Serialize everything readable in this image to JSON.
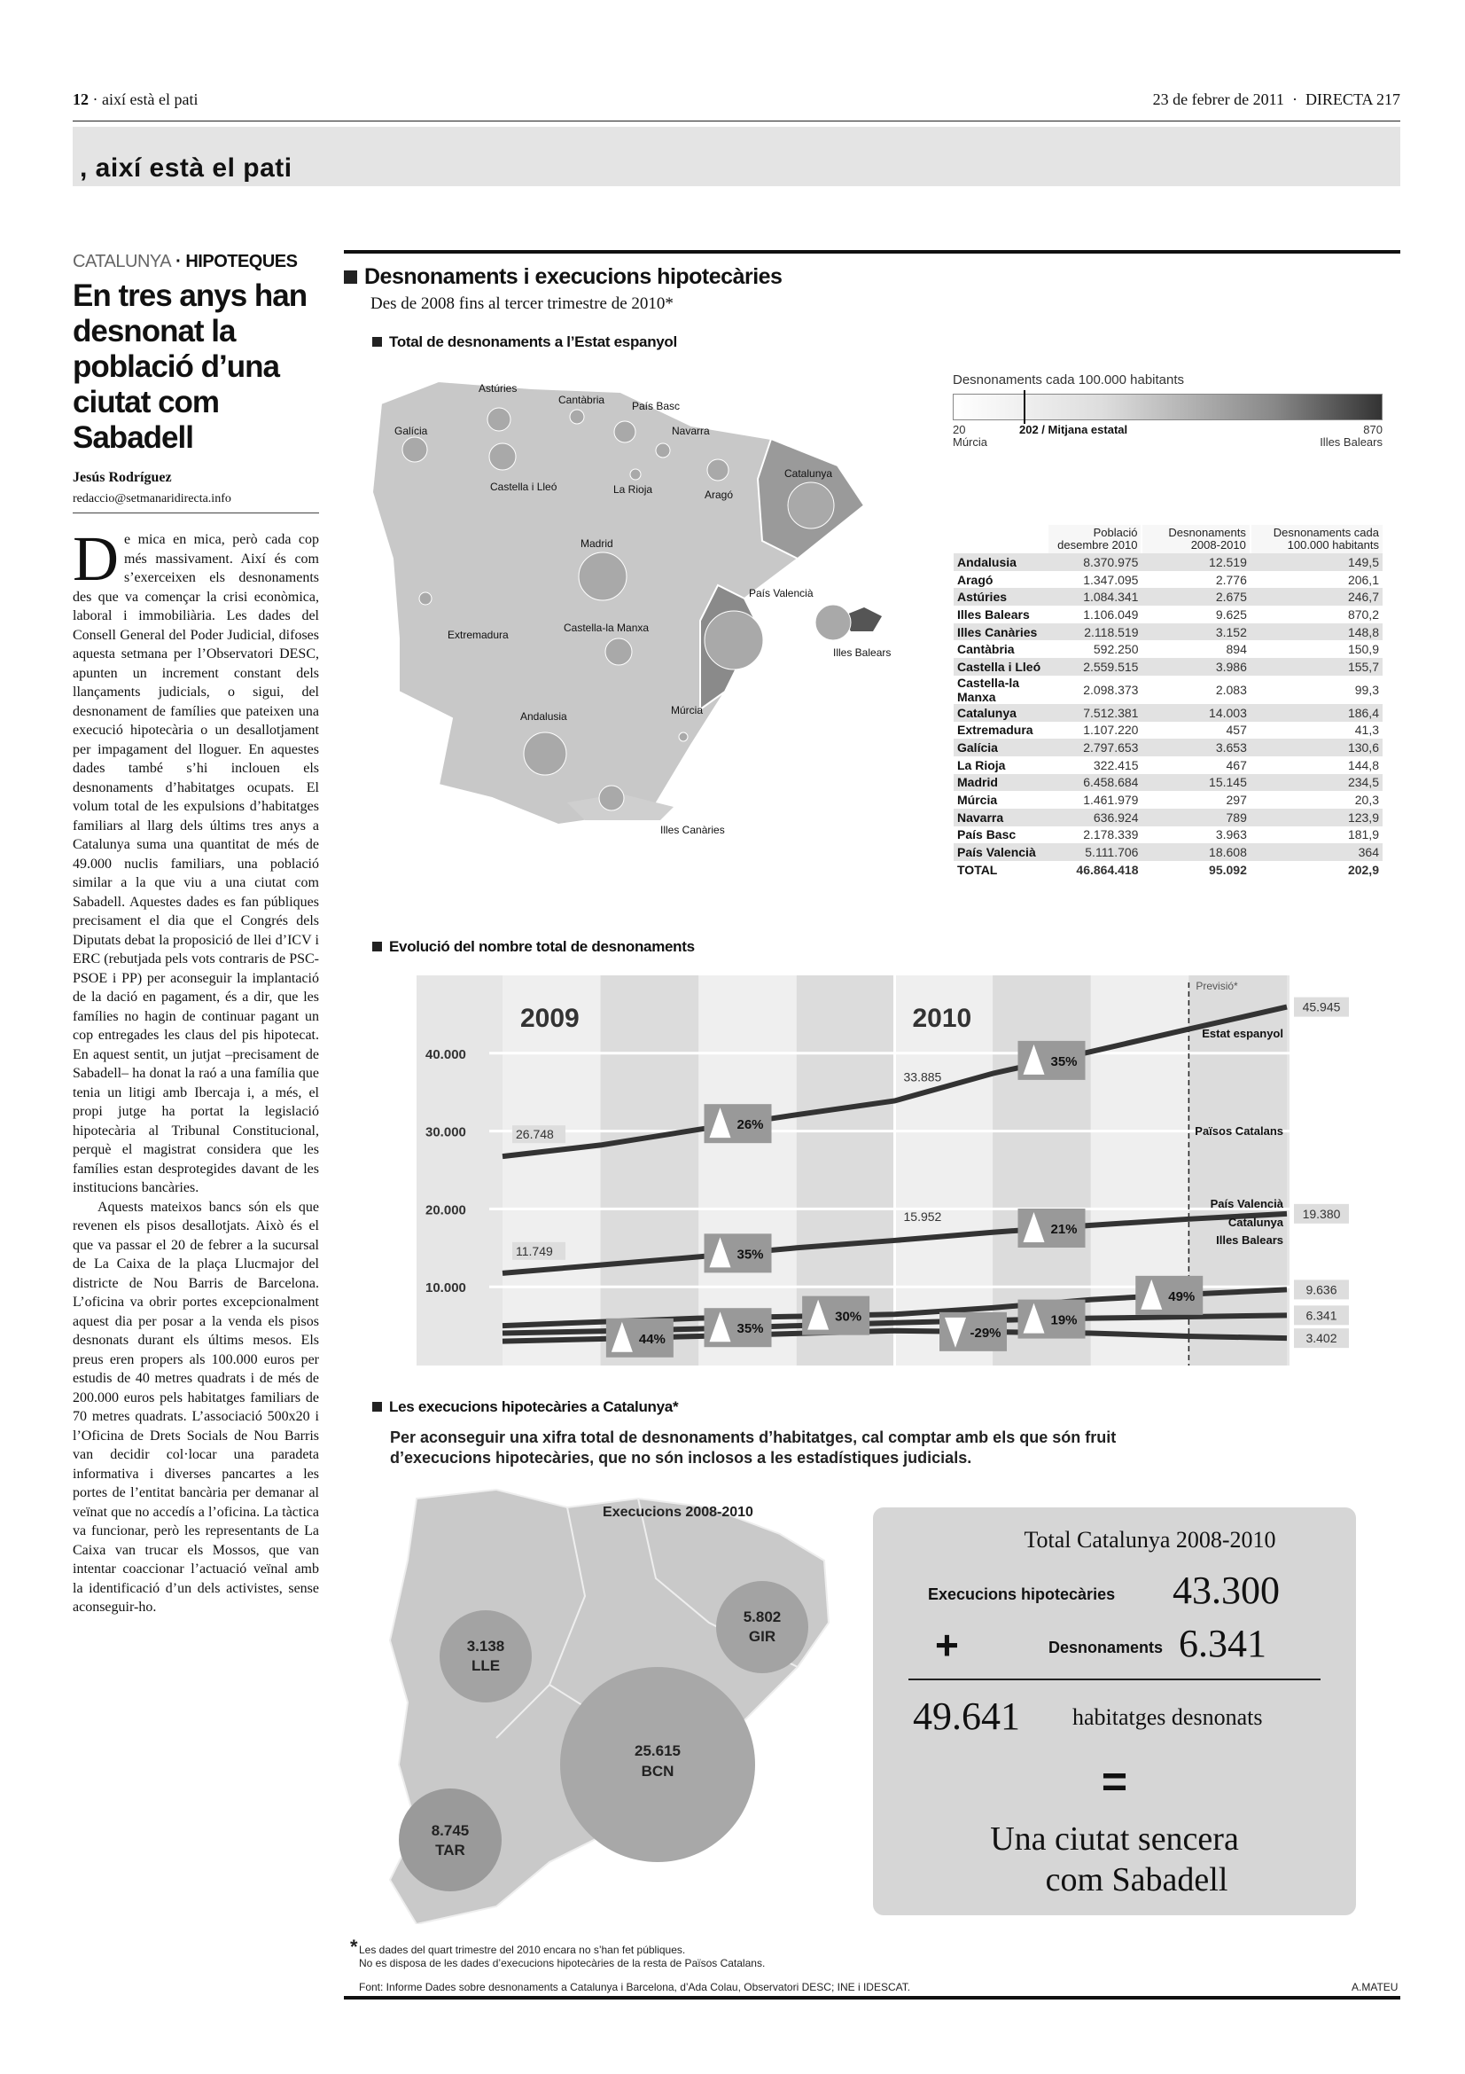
{
  "header": {
    "page": "12",
    "section": "així està el pati",
    "date": "23 de febrer de 2011",
    "separator": "·",
    "publication": "DIRECTA 217"
  },
  "banner": {
    "title": ", així està el pati"
  },
  "article": {
    "kicker_region": "CATALUNYA",
    "kicker_topic": "· HIPOTEQUES",
    "headline": "En tres anys han desnonat la població d’una ciutat com Sabadell",
    "author": "Jesús Rodríguez",
    "email": "redaccio@setmanaridirecta.info",
    "dropcap": "D",
    "paragraphs": [
      "e mica en mica, però cada cop més massivament. Així és com s’exerceixen els desnonaments des que va començar la crisi econòmica, laboral i immobiliària. Les dades del Consell General del Poder Judicial, difoses aquesta setmana per l’Observatori DESC, apunten un increment constant dels llançaments judicials, o sigui, del desnonament de famílies que pateixen una execució hipotecària o un desallotjament per impagament del lloguer. En aquestes dades també s’hi inclouen els desnonaments d’habitatges ocupats. El volum total de les expulsions d’habitatges familiars al llarg dels últims tres anys a Catalunya suma una quantitat de més de 49.000 nuclis familiars, una població similar a la que viu a una ciutat com Sabadell. Aquestes dades es fan públiques precisament el dia que el Congrés dels Diputats debat la proposició de llei d’ICV i ERC (rebutjada pels vots contraris de PSC-PSOE i PP) per aconseguir la implantació de la dació en pagament, és a dir, que les famílies no hagin de continuar pagant un cop entregades les claus del pis hipotecat. En aquest sentit, un jutjat –precisament de Sabadell– ha donat la raó a una família que tenia un litigi amb Ibercaja i, a més, el propi jutge ha portat la legislació hipotecària al Tribunal Constitucional, perquè el magistrat considera que les famílies estan desprotegides davant de les institucions bancàries.",
      "Aquests mateixos bancs són els que revenen els pisos desallotjats. Això és el que va passar el 20 de febrer a la sucursal de La Caixa de la plaça Llucmajor del districte de Nou Barris de Barcelona. L’oficina va obrir portes excepcionalment aquest dia per posar a la venda els pisos desnonats durant els últims mesos. Els preus eren propers als 100.000 euros per estudis de 40 metres quadrats i de més de 200.000 euros pels habitatges familiars de 70 metres quadrats. L’associació 500x20 i l’Oficina de Drets Socials de Nou Barris van decidir col·locar una paradeta informativa i diverses pancartes a les portes de l’entitat bancària per demanar al veïnat que no accedís a l’oficina. La tàctica va funcionar, però les representants de La Caixa van trucar els Mossos, que van intentar coaccionar l’actuació veïnal amb la identificació d’un dels activistes, sense aconseguir-ho."
    ]
  },
  "infographic": {
    "title": "Desnonaments i execucions hipotecàries",
    "subtitle": "Des de 2008 fins al tercer trimestre de 2010*",
    "map_section": "Total de desnonaments a l’Estat espanyol",
    "legend": {
      "title": "Desnonaments cada 100.000 habitants",
      "min_value": "20",
      "min_label": "Múrcia",
      "mid": "202 / Mitjana estatal",
      "max_value": "870",
      "max_label": "Illes Balears"
    },
    "map_labels": [
      "Galícia",
      "Astúries",
      "Cantàbria",
      "País Basc",
      "Navarra",
      "La Rioja",
      "Aragó",
      "Catalunya",
      "Castella i Lleó",
      "Madrid",
      "Extremadura",
      "Castella-la Manxa",
      "País Valencià",
      "Andalusia",
      "Múrcia",
      "Illes Balears",
      "Illes Canàries"
    ],
    "table": {
      "headers": [
        "",
        "Població desembre 2010",
        "Desnonaments 2008-2010",
        "Desnonaments cada 100.000 habitants"
      ],
      "rows": [
        [
          "Andalusia",
          "8.370.975",
          "12.519",
          "149,5"
        ],
        [
          "Aragó",
          "1.347.095",
          "2.776",
          "206,1"
        ],
        [
          "Astúries",
          "1.084.341",
          "2.675",
          "246,7"
        ],
        [
          "Illes Balears",
          "1.106.049",
          "9.625",
          "870,2"
        ],
        [
          "Illes Canàries",
          "2.118.519",
          "3.152",
          "148,8"
        ],
        [
          "Cantàbria",
          "592.250",
          "894",
          "150,9"
        ],
        [
          "Castella i Lleó",
          "2.559.515",
          "3.986",
          "155,7"
        ],
        [
          "Castella-la Manxa",
          "2.098.373",
          "2.083",
          "99,3"
        ],
        [
          "Catalunya",
          "7.512.381",
          "14.003",
          "186,4"
        ],
        [
          "Extremadura",
          "1.107.220",
          "457",
          "41,3"
        ],
        [
          "Galícia",
          "2.797.653",
          "3.653",
          "130,6"
        ],
        [
          "La Rioja",
          "322.415",
          "467",
          "144,8"
        ],
        [
          "Madrid",
          "6.458.684",
          "15.145",
          "234,5"
        ],
        [
          "Múrcia",
          "1.461.979",
          "297",
          "20,3"
        ],
        [
          "Navarra",
          "636.924",
          "789",
          "123,9"
        ],
        [
          "País Basc",
          "2.178.339",
          "3.963",
          "181,9"
        ],
        [
          "País Valencià",
          "5.111.706",
          "18.608",
          "364"
        ],
        [
          "TOTAL",
          "46.864.418",
          "95.092",
          "202,9"
        ]
      ]
    },
    "evolution_section": "Evolució del nombre total de desnonaments",
    "exec_section": "Les execucions hipotecàries a Catalunya*",
    "exec_subtitle": "Per aconseguir una xifra total de desnonaments d’habitatges, cal comptar amb els que són fruit d’execucions hipotecàries, que no són inclosos a les estadístiques judicials.",
    "cat_map": {
      "title": "Execucions 2008-2010",
      "circles": [
        {
          "value": "3.138",
          "label": "LLE"
        },
        {
          "value": "5.802",
          "label": "GIR"
        },
        {
          "value": "25.615",
          "label": "BCN"
        },
        {
          "value": "8.745",
          "label": "TAR"
        }
      ]
    },
    "total_box": {
      "title": "Total Catalunya 2008-2010",
      "exec_label": "Execucions hipotecàries",
      "exec_value": "43.300",
      "plus": "+",
      "desn_label": "Desnonaments",
      "desn_value": "6.341",
      "total_value": "49.641",
      "total_label": "habitatges desnonats",
      "equals": "=",
      "conclusion_1": "Una ciutat sencera",
      "conclusion_2": "com Sabadell"
    },
    "footnote_1": "Les dades del quart trimestre del 2010 encara no s’han fet públiques.",
    "footnote_2": "No es disposa de les dades d’execucions hipotecàries de la resta de Països Catalans.",
    "footnote_star": "*",
    "source": "Font: Informe Dades sobre desnonaments a Catalunya i Barcelona, d’Ada Colau, Observatori DESC; INE i IDESCAT.",
    "credit": "A.MATEU"
  },
  "chart_data": {
    "type": "line",
    "title": "Evolució del nombre total de desnonaments",
    "year_labels": [
      "2009",
      "2010"
    ],
    "forecast_label": "Previsió*",
    "x": [
      0,
      1,
      2,
      3,
      4,
      5,
      6,
      7,
      8
    ],
    "ylim": [
      0,
      50000
    ],
    "yticks": [
      10000,
      20000,
      30000,
      40000
    ],
    "ytick_labels": [
      "10.000",
      "20.000",
      "30.000",
      "40.000"
    ],
    "series": [
      {
        "name": "Estat espanyol",
        "values": [
          26748,
          28200,
          30200,
          32100,
          33885,
          37400,
          40200,
          43100,
          45945
        ],
        "end_label": "45.945",
        "point_labels": [
          {
            "x": 0,
            "text": "26.748"
          },
          {
            "x": 4,
            "text": "33.885"
          }
        ]
      },
      {
        "name": "Països Catalans",
        "values": [
          11749,
          12800,
          13850,
          15000,
          15952,
          17000,
          17900,
          18700,
          19380
        ],
        "end_label": "19.380",
        "point_labels": [
          {
            "x": 0,
            "text": "11.749"
          },
          {
            "x": 4,
            "text": "15.952"
          }
        ]
      },
      {
        "name": "País Valencià",
        "values": [
          5000,
          5500,
          5960,
          6200,
          6460,
          7300,
          8350,
          9040,
          9636
        ],
        "end_label": "9.636",
        "point_labels": []
      },
      {
        "name": "Catalunya",
        "values": [
          4040,
          4300,
          4600,
          5000,
          5380,
          5700,
          5960,
          6150,
          6341
        ],
        "end_label": "6.341",
        "point_labels": []
      },
      {
        "name": "Illes Balears",
        "values": [
          3000,
          3300,
          3650,
          4000,
          4350,
          4200,
          4040,
          3650,
          3402
        ],
        "end_label": "3.402",
        "point_labels": []
      }
    ],
    "markers": [
      {
        "series": 0,
        "x": 2.4,
        "text": "26%",
        "dir": "up"
      },
      {
        "series": 0,
        "x": 5.6,
        "text": "35%",
        "dir": "up"
      },
      {
        "series": 1,
        "x": 2.4,
        "text": "35%",
        "dir": "up"
      },
      {
        "series": 1,
        "x": 5.6,
        "text": "21%",
        "dir": "up"
      },
      {
        "series": 2,
        "x": 6.8,
        "text": "49%",
        "dir": "up"
      },
      {
        "series": 2,
        "x": 3.4,
        "text": "30%",
        "dir": "up"
      },
      {
        "series": 3,
        "x": 5.6,
        "text": "19%",
        "dir": "up"
      },
      {
        "series": 3,
        "x": 2.4,
        "text": "35%",
        "dir": "up"
      },
      {
        "series": 4,
        "x": 1.4,
        "text": "44%",
        "dir": "up"
      },
      {
        "series": 4,
        "x": 4.8,
        "text": "-29%",
        "dir": "down"
      }
    ]
  }
}
